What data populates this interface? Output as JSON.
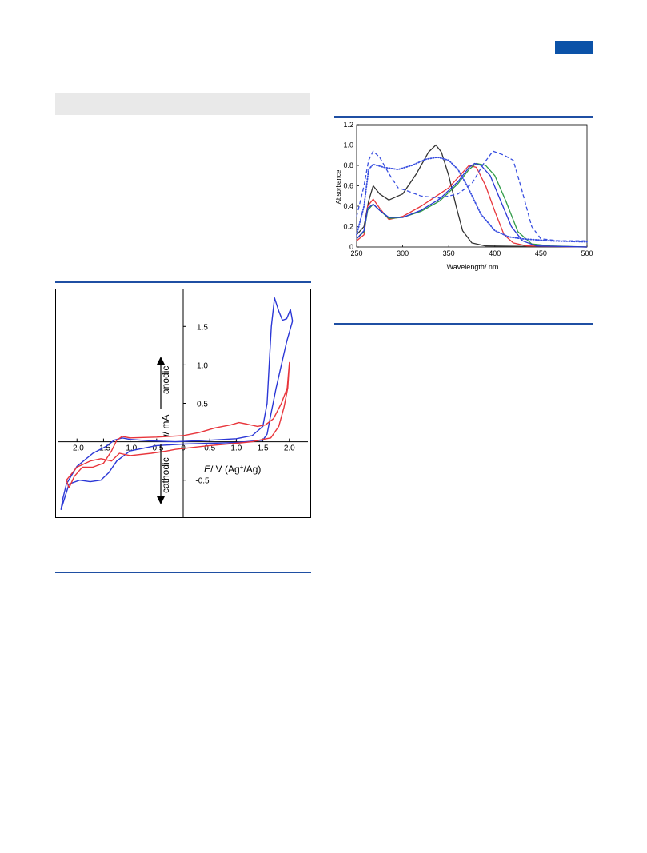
{
  "colors": {
    "rule": "#1f4fa3",
    "badge": "#0b52a8",
    "gray_box": "#e9e9e9",
    "red": "#e8353b",
    "blue": "#2b37d6",
    "green": "#2f9a47",
    "black": "#333333",
    "dashed_blue": "#3a50e0"
  },
  "chart_data": [
    {
      "type": "line",
      "title": "",
      "xlabel_italic": "E",
      "xlabel_rest": "/ V (Ag",
      "xlabel_sup": "+",
      "xlabel_end": "/Ag)",
      "ylabel_italic": "i",
      "ylabel_rest": "/ mA",
      "annotation_up": "anodic",
      "annotation_down": "cathodic",
      "xlim": [
        -2.35,
        2.35
      ],
      "ylim": [
        -0.95,
        1.95
      ],
      "x_ticks": [
        -2.0,
        -1.5,
        -1.0,
        -0.5,
        0,
        0.5,
        1.0,
        1.5,
        2.0
      ],
      "x_tick_labels": [
        "-2.0",
        "-1.5",
        "-1.0",
        "-0.5",
        "0",
        "0.5",
        "1.0",
        "1.5",
        "2.0"
      ],
      "y_ticks": [
        -0.5,
        0.5,
        1.0,
        1.5
      ],
      "y_tick_labels": [
        "-0.5",
        "0.5",
        "1.0",
        "1.5"
      ],
      "series": [
        {
          "color": "blue",
          "points": [
            [
              -0.15,
              0.0
            ],
            [
              0.5,
              0.02
            ],
            [
              1.0,
              0.04
            ],
            [
              1.3,
              0.08
            ],
            [
              1.5,
              0.2
            ],
            [
              1.58,
              0.5
            ],
            [
              1.62,
              1.0
            ],
            [
              1.66,
              1.5
            ],
            [
              1.72,
              1.87
            ],
            [
              1.8,
              1.7
            ],
            [
              1.87,
              1.58
            ],
            [
              1.95,
              1.6
            ],
            [
              2.02,
              1.72
            ],
            [
              2.06,
              1.57
            ],
            [
              1.95,
              1.3
            ],
            [
              1.85,
              1.0
            ],
            [
              1.75,
              0.7
            ],
            [
              1.65,
              0.35
            ],
            [
              1.58,
              0.1
            ],
            [
              1.5,
              0.02
            ],
            [
              1.0,
              -0.01
            ],
            [
              0.5,
              -0.02
            ],
            [
              0.0,
              -0.03
            ],
            [
              -0.5,
              -0.05
            ],
            [
              -1.0,
              -0.12
            ],
            [
              -1.25,
              -0.25
            ],
            [
              -1.4,
              -0.4
            ],
            [
              -1.55,
              -0.5
            ],
            [
              -1.75,
              -0.52
            ],
            [
              -1.95,
              -0.5
            ],
            [
              -2.15,
              -0.55
            ],
            [
              -2.3,
              -0.88
            ],
            [
              -2.27,
              -0.75
            ],
            [
              -2.2,
              -0.55
            ],
            [
              -2.0,
              -0.32
            ],
            [
              -1.7,
              -0.15
            ],
            [
              -1.45,
              -0.06
            ],
            [
              -1.3,
              0.02
            ],
            [
              -1.15,
              0.05
            ],
            [
              -1.0,
              0.03
            ],
            [
              -0.6,
              0.01
            ],
            [
              -0.15,
              0.0
            ]
          ]
        },
        {
          "color": "red",
          "points": [
            [
              -0.15,
              -0.1
            ],
            [
              0.5,
              -0.05
            ],
            [
              1.0,
              -0.02
            ],
            [
              1.3,
              0.0
            ],
            [
              1.5,
              0.03
            ],
            [
              1.65,
              0.05
            ],
            [
              1.8,
              0.2
            ],
            [
              1.9,
              0.45
            ],
            [
              1.97,
              0.7
            ],
            [
              2.0,
              1.03
            ],
            [
              1.96,
              0.7
            ],
            [
              1.85,
              0.5
            ],
            [
              1.7,
              0.3
            ],
            [
              1.55,
              0.22
            ],
            [
              1.4,
              0.2
            ],
            [
              1.2,
              0.23
            ],
            [
              1.05,
              0.25
            ],
            [
              0.9,
              0.22
            ],
            [
              0.6,
              0.18
            ],
            [
              0.3,
              0.12
            ],
            [
              0.0,
              0.08
            ],
            [
              -0.5,
              0.06
            ],
            [
              -1.0,
              0.05
            ],
            [
              -1.15,
              0.07
            ],
            [
              -1.25,
              0.02
            ],
            [
              -1.35,
              -0.12
            ],
            [
              -1.5,
              -0.28
            ],
            [
              -1.7,
              -0.33
            ],
            [
              -1.9,
              -0.33
            ],
            [
              -2.05,
              -0.45
            ],
            [
              -2.15,
              -0.6
            ],
            [
              -2.2,
              -0.5
            ],
            [
              -2.0,
              -0.33
            ],
            [
              -1.75,
              -0.25
            ],
            [
              -1.55,
              -0.22
            ],
            [
              -1.35,
              -0.25
            ],
            [
              -1.2,
              -0.15
            ],
            [
              -1.0,
              -0.18
            ],
            [
              -0.6,
              -0.15
            ],
            [
              -0.3,
              -0.12
            ],
            [
              -0.15,
              -0.1
            ]
          ]
        }
      ]
    },
    {
      "type": "line",
      "title": "",
      "xlabel": "Wavelength/ nm",
      "ylabel": "Absorbance",
      "xlim": [
        250,
        500
      ],
      "ylim": [
        0,
        1.2
      ],
      "x_ticks": [
        250,
        300,
        350,
        400,
        450,
        500
      ],
      "x_tick_labels": [
        "250",
        "300",
        "350",
        "400",
        "450",
        "500"
      ],
      "y_ticks": [
        0,
        0.2,
        0.4,
        0.6,
        0.8,
        1.0,
        1.2
      ],
      "y_tick_labels": [
        "0",
        "0.2",
        "0.4",
        "0.6",
        "0.8",
        "1.0",
        "1.2"
      ],
      "series": [
        {
          "color": "black",
          "style": "solid",
          "points": [
            [
              250,
              0.12
            ],
            [
              258,
              0.2
            ],
            [
              263,
              0.45
            ],
            [
              268,
              0.6
            ],
            [
              275,
              0.52
            ],
            [
              285,
              0.46
            ],
            [
              300,
              0.52
            ],
            [
              315,
              0.72
            ],
            [
              328,
              0.93
            ],
            [
              336,
              1.0
            ],
            [
              342,
              0.93
            ],
            [
              350,
              0.7
            ],
            [
              358,
              0.4
            ],
            [
              365,
              0.16
            ],
            [
              375,
              0.04
            ],
            [
              390,
              0.01
            ],
            [
              500,
              0.0
            ]
          ]
        },
        {
          "color": "red",
          "style": "solid",
          "points": [
            [
              250,
              0.06
            ],
            [
              258,
              0.12
            ],
            [
              262,
              0.4
            ],
            [
              268,
              0.47
            ],
            [
              275,
              0.38
            ],
            [
              285,
              0.27
            ],
            [
              300,
              0.3
            ],
            [
              320,
              0.4
            ],
            [
              340,
              0.52
            ],
            [
              350,
              0.58
            ],
            [
              362,
              0.7
            ],
            [
              372,
              0.8
            ],
            [
              380,
              0.78
            ],
            [
              390,
              0.6
            ],
            [
              400,
              0.35
            ],
            [
              410,
              0.12
            ],
            [
              420,
              0.04
            ],
            [
              435,
              0.01
            ],
            [
              500,
              0.0
            ]
          ]
        },
        {
          "color": "green",
          "style": "solid",
          "points": [
            [
              250,
              0.08
            ],
            [
              258,
              0.15
            ],
            [
              262,
              0.36
            ],
            [
              268,
              0.42
            ],
            [
              275,
              0.36
            ],
            [
              285,
              0.28
            ],
            [
              300,
              0.29
            ],
            [
              320,
              0.35
            ],
            [
              340,
              0.45
            ],
            [
              360,
              0.62
            ],
            [
              372,
              0.76
            ],
            [
              380,
              0.82
            ],
            [
              390,
              0.8
            ],
            [
              400,
              0.7
            ],
            [
              412,
              0.45
            ],
            [
              425,
              0.15
            ],
            [
              440,
              0.03
            ],
            [
              460,
              0.01
            ],
            [
              500,
              0.0
            ]
          ]
        },
        {
          "color": "blue",
          "style": "solid",
          "points": [
            [
              250,
              0.08
            ],
            [
              258,
              0.16
            ],
            [
              262,
              0.38
            ],
            [
              268,
              0.42
            ],
            [
              275,
              0.36
            ],
            [
              285,
              0.29
            ],
            [
              300,
              0.29
            ],
            [
              320,
              0.36
            ],
            [
              340,
              0.47
            ],
            [
              360,
              0.64
            ],
            [
              372,
              0.78
            ],
            [
              378,
              0.82
            ],
            [
              385,
              0.8
            ],
            [
              395,
              0.7
            ],
            [
              405,
              0.48
            ],
            [
              418,
              0.2
            ],
            [
              430,
              0.06
            ],
            [
              445,
              0.01
            ],
            [
              500,
              0.0
            ]
          ]
        },
        {
          "color": "dashed_blue",
          "style": "dashed",
          "points": [
            [
              250,
              0.3
            ],
            [
              258,
              0.6
            ],
            [
              263,
              0.85
            ],
            [
              268,
              0.94
            ],
            [
              275,
              0.88
            ],
            [
              285,
              0.72
            ],
            [
              295,
              0.58
            ],
            [
              305,
              0.55
            ],
            [
              320,
              0.5
            ],
            [
              340,
              0.48
            ],
            [
              360,
              0.52
            ],
            [
              375,
              0.62
            ],
            [
              388,
              0.82
            ],
            [
              398,
              0.94
            ],
            [
              410,
              0.9
            ],
            [
              420,
              0.85
            ],
            [
              428,
              0.6
            ],
            [
              440,
              0.2
            ],
            [
              450,
              0.08
            ],
            [
              470,
              0.06
            ],
            [
              500,
              0.06
            ]
          ]
        },
        {
          "color": "dashed_blue",
          "style": "dotted",
          "points": [
            [
              250,
              0.12
            ],
            [
              258,
              0.4
            ],
            [
              263,
              0.76
            ],
            [
              268,
              0.81
            ],
            [
              280,
              0.78
            ],
            [
              295,
              0.76
            ],
            [
              310,
              0.8
            ],
            [
              325,
              0.86
            ],
            [
              338,
              0.88
            ],
            [
              350,
              0.85
            ],
            [
              360,
              0.76
            ],
            [
              370,
              0.6
            ],
            [
              385,
              0.32
            ],
            [
              400,
              0.16
            ],
            [
              415,
              0.1
            ],
            [
              430,
              0.08
            ],
            [
              460,
              0.06
            ],
            [
              500,
              0.05
            ]
          ]
        }
      ]
    }
  ]
}
